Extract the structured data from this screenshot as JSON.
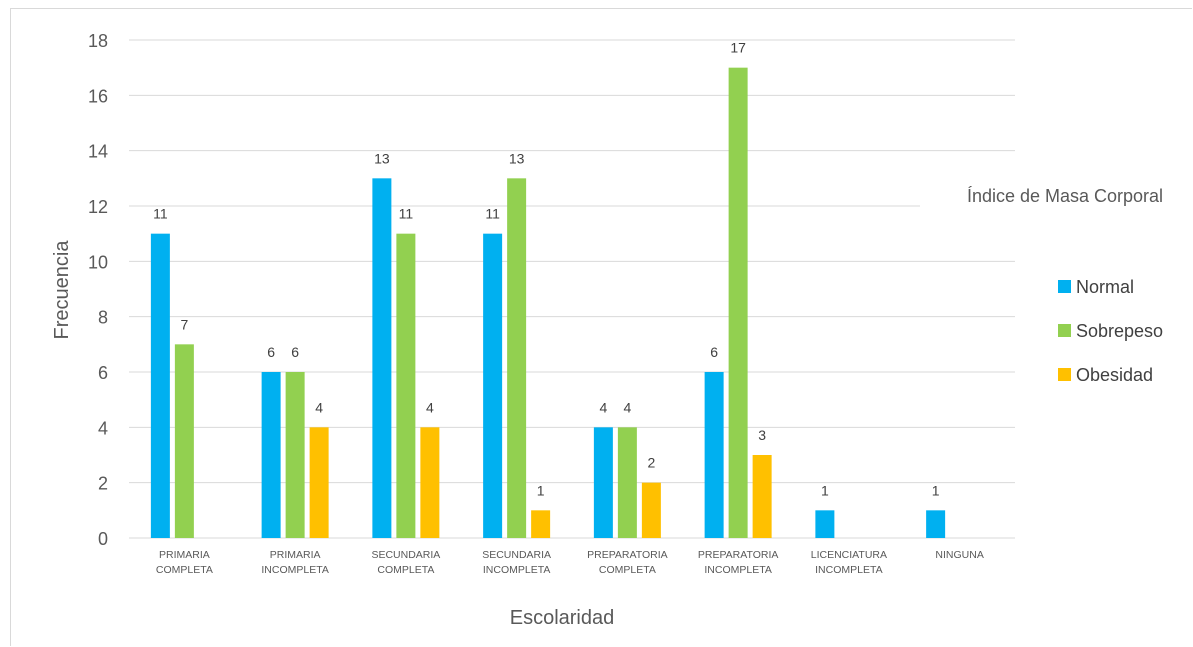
{
  "chart_data": {
    "type": "bar",
    "title": "",
    "legend_title": "Índice de Masa Corporal",
    "xlabel": "Escolaridad",
    "ylabel": "Frecuencia",
    "ylim": [
      0,
      18
    ],
    "yticks": [
      0,
      2,
      4,
      6,
      8,
      10,
      12,
      14,
      16,
      18
    ],
    "grid": true,
    "legend_position": "right",
    "categories": [
      [
        "PRIMARIA",
        "COMPLETA"
      ],
      [
        "PRIMARIA",
        "INCOMPLETA"
      ],
      [
        "SECUNDARIA",
        "COMPLETA"
      ],
      [
        "SECUNDARIA",
        "INCOMPLETA"
      ],
      [
        "PREPARATORIA",
        "COMPLETA"
      ],
      [
        "PREPARATORIA",
        "INCOMPLETA"
      ],
      [
        "LICENCIATURA",
        "INCOMPLETA"
      ],
      [
        "NINGUNA"
      ]
    ],
    "series": [
      {
        "name": "Normal",
        "color": "#00b0f0",
        "values": [
          11,
          6,
          13,
          11,
          4,
          6,
          1,
          1
        ]
      },
      {
        "name": "Sobrepeso",
        "color": "#92d050",
        "values": [
          7,
          6,
          11,
          13,
          4,
          17,
          null,
          null
        ]
      },
      {
        "name": "Obesidad",
        "color": "#ffc000",
        "values": [
          null,
          4,
          4,
          1,
          2,
          3,
          null,
          null
        ]
      }
    ]
  }
}
